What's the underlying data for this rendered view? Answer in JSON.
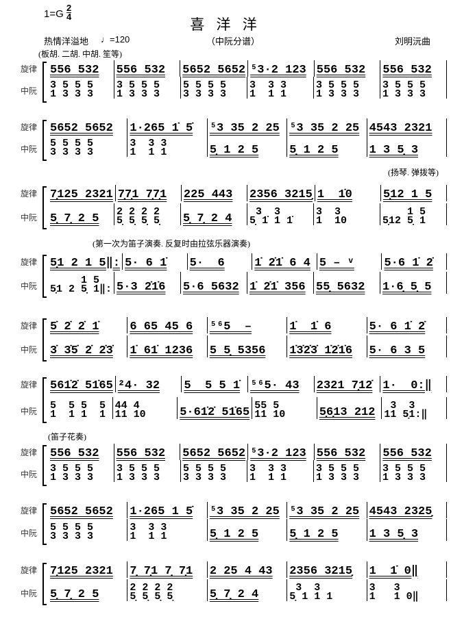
{
  "header": {
    "key": "1=G",
    "time_top": "2",
    "time_bottom": "4",
    "title": "喜 洋 洋",
    "expression": "热情洋溢地",
    "tempo": "=120",
    "subtitle": "（中阮分谱）",
    "composer": "刘明沅曲",
    "instruments": "(板胡. 二胡. 中胡. 笙等)"
  },
  "labels": {
    "melody": "旋律",
    "zhongruan": "中阮"
  },
  "annotations": {
    "yangqin": "(扬琴. 弹拨等)",
    "repeat_note": "(第一次为笛子演奏. 反复时由拉弦乐器演奏)",
    "dizi": "(笛子花奏)"
  },
  "systems": [
    {
      "melody": [
        "556 532",
        "556 532",
        "5652 5652",
        "⁵3·2 123",
        "556 532",
        "556 532"
      ],
      "zr": [
        {
          "t": "3 5 5 5",
          "b": "1 3 3 3"
        },
        {
          "t": "3 5 5 5",
          "b": "1 3 3 3"
        },
        {
          "t": "5 5 5 5",
          "b": "3 3 3 3"
        },
        {
          "t": "3  3 3",
          "b": "1  1 1"
        },
        {
          "t": "3 5 5 5",
          "b": "1 3 3 3"
        },
        {
          "t": "3 5 5 5",
          "b": "1 3 3 3"
        }
      ]
    },
    {
      "melody": [
        "5652 5652",
        "1·265 1̇ 5̇",
        "⁵3 35 2 25",
        "⁵3 35 2 25",
        "4543 2321"
      ],
      "zr": [
        {
          "t": "5 5 5 5",
          "b": "3 3 3 3"
        },
        {
          "t": "3  3 3",
          "b": "1  1 1"
        },
        {
          "t": "",
          "b": "5̣ 1 2 5"
        },
        {
          "t": "",
          "b": "5̣ 1 2 5"
        },
        {
          "t": "",
          "b": "1 3 5̣ 3"
        }
      ]
    },
    {
      "melody": [
        "7̣125 2321",
        "7̣7̣1 7̣7̣1",
        "225 443",
        "2356 3215̣",
        "1  1̇0",
        "5̣12 1 5"
      ],
      "zr": [
        {
          "t": "",
          "b": "5̣ 7̣ 2 5"
        },
        {
          "t": "2 2 2 2",
          "b": "5̣ 5̣ 5̣ 5̣"
        },
        {
          "t": "",
          "b": "5̣ 7̣ 2 4"
        },
        {
          "t": " 3  3",
          "b": "5̣ 1̇ 1 1̇"
        },
        {
          "t": "3  3",
          "b": "1  10"
        },
        {
          "t": "    1 5",
          "b": "5̣12 5̣ 1"
        }
      ]
    },
    {
      "melody": [
        "5̣1 2 1 5‖:",
        "5· 6 1̇",
        "5·  6",
        "1̇ 2̇1̇ 6 4",
        "5 – ᵛ",
        "5·6 1̇ 2̇"
      ],
      "zr": [
        {
          "t": "     1 5",
          "b": "5̣1 2 5̣ 1‖:"
        },
        {
          "t": "",
          "b": "5·3 2̇1̇6"
        },
        {
          "t": "",
          "b": "5·6 5632"
        },
        {
          "t": "",
          "b": "1̇ 2̇1̇ 356"
        },
        {
          "t": "",
          "b": "55̣ 5632"
        },
        {
          "t": "",
          "b": "1·6̣ 5̣ 5"
        }
      ]
    },
    {
      "melody": [
        "5̇ 2̇ 2̇ 1̇",
        "6 65 45 6",
        "⁵⁶5  –",
        "1̇  1̇ 6",
        "5· 6 1̇ 2̇"
      ],
      "zr": [
        {
          "t": "",
          "b": "3̇ 3̇5̇ 2̇ 2̇3̇"
        },
        {
          "t": "",
          "b": "1̇ 61̇ 1236"
        },
        {
          "t": "",
          "b": "5 5̣ 5356"
        },
        {
          "t": "",
          "b": "1̇3̇2̇3̇ 1̇2̇1̇6"
        },
        {
          "t": "",
          "b": "5· 6 3 5"
        }
      ]
    },
    {
      "melody": [
        "561̇2̇ 51̇65",
        "²4· 32",
        "5  5 5 1̇",
        "⁵⁶5· 43",
        "2321 7̣12̇",
        "1·  0:‖"
      ],
      "zr": [
        {
          "t": "5  5 5  5",
          "b": "1  1 1  1"
        },
        {
          "t": "44 4",
          "b": "11 10"
        },
        {
          "t": "",
          "b": "5·61̇2̇ 51̇65"
        },
        {
          "t": "55 5",
          "b": "11 10"
        },
        {
          "t": "",
          "b": "5̣6̣13 212"
        },
        {
          "t": " 3  3",
          "b": "11 5̣1:‖"
        }
      ]
    },
    {
      "melody": [
        "556 532",
        "556 532",
        "5652 5652",
        "⁵3·2 123",
        "556 532",
        "556 532"
      ],
      "zr": [
        {
          "t": "3 5 5 5",
          "b": "1 3 3 3"
        },
        {
          "t": "3 5 5 5",
          "b": "1 3 3 3"
        },
        {
          "t": "5 5 5 5",
          "b": "3 3 3 3"
        },
        {
          "t": "3  3 3",
          "b": "1  1 1"
        },
        {
          "t": "3 5 5 5",
          "b": "1 3 3 3"
        },
        {
          "t": "3 5 5 5",
          "b": "1 3 3 3"
        }
      ]
    },
    {
      "melody": [
        "5652 5652",
        "1·265 1 5̇",
        "⁵3 35 2 25",
        "⁵3 35 2 25",
        "4543 2325̣"
      ],
      "zr": [
        {
          "t": "5 5 5 5",
          "b": "3 3 3 3"
        },
        {
          "t": "3  3 3",
          "b": "1  1 1"
        },
        {
          "t": "",
          "b": "5̣ 1 2 5"
        },
        {
          "t": "",
          "b": "5̣ 1 2 5"
        },
        {
          "t": "",
          "b": "1 3 5̣ 3"
        }
      ]
    },
    {
      "melody": [
        "7̣125 2321",
        "7̣ 7̣1 7̣ 7̣1",
        "2 25 4 43",
        "2356 3215̣",
        "1  1̇ 0‖"
      ],
      "zr": [
        {
          "t": "",
          "b": "5̣ 7̣ 2 5"
        },
        {
          "t": "2 2 2 2",
          "b": "5̣ 5̣ 5̣ 5̣"
        },
        {
          "t": "",
          "b": "5̣ 7̣ 2 4"
        },
        {
          "t": " 3  3",
          "b": "5̣ 1 1 1"
        },
        {
          "t": "3   3",
          "b": "1   1 0‖"
        }
      ]
    }
  ]
}
